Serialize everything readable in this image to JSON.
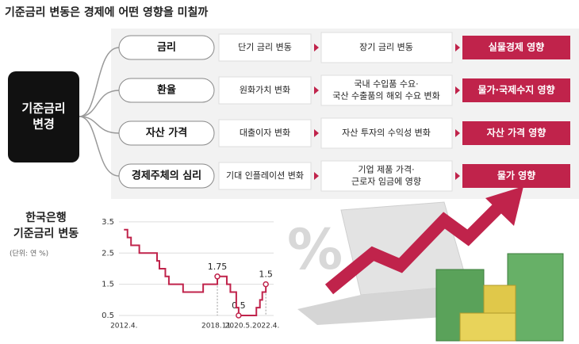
{
  "header": {
    "title": "기준금리 변동은 경제에 어떤 영향을 미칠까"
  },
  "root": {
    "lines": [
      "기준금리",
      "변경"
    ]
  },
  "rows": [
    {
      "channel": "금리",
      "step1": [
        "단기 금리 변동"
      ],
      "step2": [
        "장기 금리 변동"
      ],
      "effect": "실물경제 영향"
    },
    {
      "channel": "환율",
      "step1": [
        "원화가치 변화"
      ],
      "step2": [
        "국내 수입품 수요·",
        "국산 수출품의 해외 수요 변화"
      ],
      "effect": "물가·국제수지 영향"
    },
    {
      "channel": "자산 가격",
      "step1": [
        "대출이자 변화"
      ],
      "step2": [
        "자산 투자의 수익성 변화"
      ],
      "effect": "자산 가격 영향"
    },
    {
      "channel": "경제주체의 심리",
      "step1": [
        "기대 인플레이션 변화"
      ],
      "step2": [
        "기업 제품 가격·",
        "근로자 임금에 영향"
      ],
      "effect": "물가 영향"
    }
  ],
  "chart_data": {
    "type": "line",
    "title": [
      "한국은행",
      "기준금리 변동"
    ],
    "unit": "(단위: 연 %)",
    "x": [
      2012.25,
      2012.5,
      2012.75,
      2013.333,
      2014.583,
      2014.75,
      2015.167,
      2015.417,
      2016.417,
      2017.833,
      2018.833,
      2019.5,
      2019.75,
      2020.167,
      2020.333,
      2021.583,
      2021.833,
      2022.0,
      2022.25
    ],
    "series": [
      {
        "color": "#c0234b",
        "values": [
          3.25,
          3.0,
          2.75,
          2.5,
          2.25,
          2.0,
          1.75,
          1.5,
          1.25,
          1.5,
          1.75,
          1.5,
          1.25,
          0.75,
          0.5,
          0.75,
          1.0,
          1.25,
          1.5
        ]
      }
    ],
    "xlim": [
      2011.9,
      2022.8
    ],
    "ylim": [
      0.5,
      3.6
    ],
    "yticks": [
      0.5,
      1.5,
      2.5,
      3.5
    ],
    "xticks": [
      {
        "value": 2012.25,
        "label": "2012.4."
      },
      {
        "value": 2018.833,
        "label": "2018.11."
      },
      {
        "value": 2020.333,
        "label": "2020.5."
      },
      {
        "value": 2022.25,
        "label": "2022.4."
      }
    ],
    "annotations": [
      {
        "x": 2018.833,
        "y": 1.75
      },
      {
        "x": 2020.333,
        "y": 0.5
      },
      {
        "x": 2022.25,
        "y": 1.5
      }
    ]
  }
}
